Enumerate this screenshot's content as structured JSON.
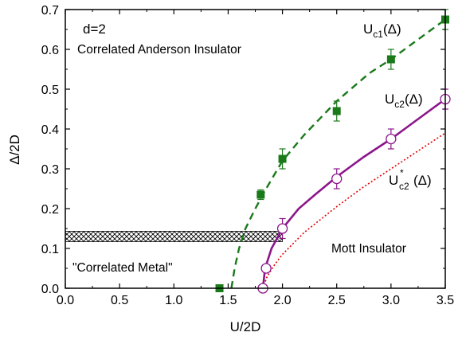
{
  "chart_data": {
    "type": "scatter",
    "xlabel": "U/2D",
    "ylabel": "Δ/2D",
    "xlim": [
      0.0,
      3.5
    ],
    "ylim": [
      0.0,
      0.7
    ],
    "x_ticks": [
      "0.0",
      "0.5",
      "1.0",
      "1.5",
      "2.0",
      "2.5",
      "3.0",
      "3.5"
    ],
    "y_ticks": [
      "0.0",
      "0.1",
      "0.2",
      "0.3",
      "0.4",
      "0.5",
      "0.6",
      "0.7"
    ],
    "grid": false,
    "colors": {
      "uc1": "#1a7a1a",
      "uc2": "#8b168b",
      "ustar": "#e00000",
      "hatch": "#000000"
    },
    "annotations": {
      "dimension": "d=2",
      "anderson": "Correlated Anderson Insulator",
      "metal": "\"Correlated Metal\"",
      "mott": "Mott Insulator"
    },
    "series": [
      {
        "name": "Uc1(Δ)",
        "label_main": "U",
        "label_sub": "c1",
        "label_arg": "(Δ)",
        "marker": "filled-square",
        "line": "dashed",
        "points": [
          {
            "x": 1.42,
            "y": 0.0,
            "err": 0.0
          },
          {
            "x": 1.8,
            "y": 0.235,
            "err": 0.012
          },
          {
            "x": 2.0,
            "y": 0.325,
            "err": 0.025
          },
          {
            "x": 2.5,
            "y": 0.445,
            "err": 0.025
          },
          {
            "x": 3.0,
            "y": 0.575,
            "err": 0.025
          },
          {
            "x": 3.5,
            "y": 0.675,
            "err": 0.025
          }
        ],
        "curve": [
          [
            1.53,
            0.0
          ],
          [
            1.56,
            0.05
          ],
          [
            1.6,
            0.1
          ],
          [
            1.66,
            0.15
          ],
          [
            1.75,
            0.2
          ],
          [
            1.85,
            0.25
          ],
          [
            2.0,
            0.32
          ],
          [
            2.2,
            0.385
          ],
          [
            2.5,
            0.47
          ],
          [
            2.8,
            0.54
          ],
          [
            3.0,
            0.575
          ],
          [
            3.2,
            0.615
          ],
          [
            3.5,
            0.675
          ]
        ]
      },
      {
        "name": "Uc2(Δ)",
        "label_main": "U",
        "label_sub": "c2",
        "label_arg": "(Δ)",
        "marker": "open-circle",
        "line": "solid",
        "points": [
          {
            "x": 1.82,
            "y": 0.0,
            "err": 0.0
          },
          {
            "x": 1.85,
            "y": 0.05,
            "err": 0.0
          },
          {
            "x": 2.0,
            "y": 0.15,
            "err": 0.025
          },
          {
            "x": 2.5,
            "y": 0.275,
            "err": 0.025
          },
          {
            "x": 3.0,
            "y": 0.375,
            "err": 0.025
          },
          {
            "x": 3.5,
            "y": 0.475,
            "err": 0.025
          }
        ],
        "curve": [
          [
            1.82,
            0.0
          ],
          [
            1.84,
            0.05
          ],
          [
            1.9,
            0.1
          ],
          [
            2.0,
            0.15
          ],
          [
            2.15,
            0.2
          ],
          [
            2.3,
            0.235
          ],
          [
            2.5,
            0.28
          ],
          [
            2.75,
            0.33
          ],
          [
            3.0,
            0.375
          ],
          [
            3.25,
            0.425
          ],
          [
            3.5,
            0.475
          ]
        ]
      },
      {
        "name": "U*c2(Δ)",
        "label_main": "U",
        "label_sup": "*",
        "label_sub": "c2",
        "label_arg": "(Δ)",
        "marker": "none",
        "line": "dotted",
        "curve": [
          [
            1.82,
            0.0
          ],
          [
            1.86,
            0.03
          ],
          [
            1.93,
            0.06
          ],
          [
            2.0,
            0.085
          ],
          [
            2.2,
            0.14
          ],
          [
            2.5,
            0.205
          ],
          [
            2.75,
            0.255
          ],
          [
            3.0,
            0.3
          ],
          [
            3.25,
            0.345
          ],
          [
            3.5,
            0.39
          ]
        ]
      }
    ],
    "hatched_band": {
      "x0": 0.0,
      "x1": 2.0,
      "y0": 0.117,
      "y1": 0.143
    }
  }
}
